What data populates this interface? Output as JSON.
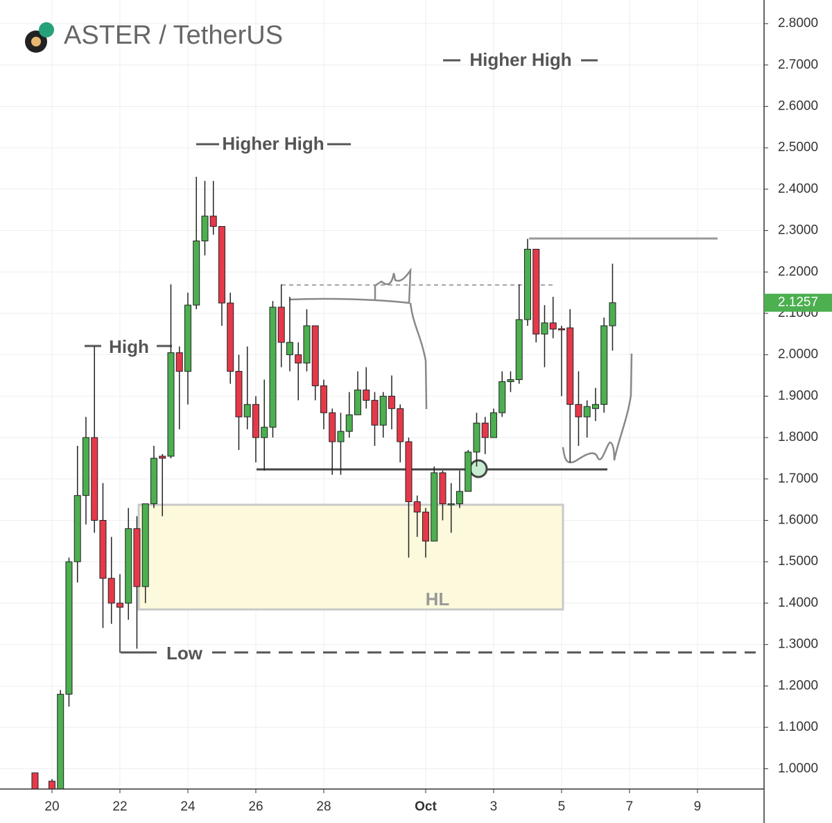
{
  "chart_data": {
    "type": "candlestick",
    "title": "ASTER / TetherUS",
    "annotations": [
      "Higher High",
      "Higher High",
      "High",
      "Low",
      "HL"
    ],
    "last_price_label": "2.1257",
    "up_color": "#4caf50",
    "down_color": "#e5394a",
    "grid": true,
    "xlim": [
      18.47,
      40.96
    ],
    "ylim": [
      0.951,
      2.857
    ],
    "xticks": [
      20,
      22,
      24,
      26,
      28,
      {
        "value": 31,
        "label": "Oct"
      },
      {
        "value": 33,
        "label": "3"
      },
      {
        "value": 35,
        "label": "5"
      },
      {
        "value": 37,
        "label": "7"
      },
      {
        "value": 39,
        "label": "9"
      }
    ],
    "yticks": [
      {
        "value": 1.0,
        "label": "1.0000"
      },
      {
        "value": 1.1,
        "label": "1.1000"
      },
      {
        "value": 1.2,
        "label": "1.2000"
      },
      {
        "value": 1.3,
        "label": "1.3000"
      },
      {
        "value": 1.4,
        "label": "1.4000"
      },
      {
        "value": 1.5,
        "label": "1.5000"
      },
      {
        "value": 1.6,
        "label": "1.6000"
      },
      {
        "value": 1.7,
        "label": "1.7000"
      },
      {
        "value": 1.8,
        "label": "1.8000"
      },
      {
        "value": 1.9,
        "label": "1.9000"
      },
      {
        "value": 2.0,
        "label": "2.0000"
      },
      {
        "value": 2.1,
        "label": "2.1000"
      },
      {
        "value": 2.2,
        "label": "2.2000"
      },
      {
        "value": 2.3,
        "label": "2.3000"
      },
      {
        "value": 2.4,
        "label": "2.4000"
      },
      {
        "value": 2.5,
        "label": "2.5000"
      },
      {
        "value": 2.6,
        "label": "2.6000"
      },
      {
        "value": 2.7,
        "label": "2.7000"
      },
      {
        "value": 2.8,
        "label": "2.8000"
      }
    ],
    "x": [
      19.5,
      20.0,
      20.25,
      20.5,
      20.75,
      21.0,
      21.25,
      21.5,
      21.75,
      22.0,
      22.25,
      22.5,
      22.75,
      23.0,
      23.25,
      23.5,
      23.75,
      24.0,
      24.25,
      24.5,
      24.75,
      25.0,
      25.25,
      25.5,
      25.75,
      26.0,
      26.25,
      26.5,
      26.75,
      27.0,
      27.25,
      27.5,
      27.75,
      28.0,
      28.25,
      28.5,
      28.75,
      29.0,
      29.25,
      29.5,
      29.75,
      30.0,
      30.25,
      30.5,
      30.75,
      31.0,
      31.25,
      31.5,
      31.75,
      32.0,
      32.25,
      32.5,
      32.75,
      33.0,
      33.25,
      33.5,
      33.75,
      34.0,
      34.25,
      34.5,
      34.75,
      35.0,
      35.25,
      35.5,
      35.75,
      36.0,
      36.25,
      36.5
    ],
    "open": [
      0.99,
      0.97,
      0.95,
      1.18,
      1.5,
      1.66,
      1.8,
      1.6,
      1.46,
      1.4,
      1.4,
      1.58,
      1.44,
      1.64,
      1.755,
      1.755,
      2.005,
      1.96,
      2.12,
      2.275,
      2.335,
      2.31,
      2.125,
      1.96,
      1.85,
      1.88,
      1.8,
      1.825,
      2.115,
      2.0,
      2.0,
      1.98,
      2.07,
      1.925,
      1.86,
      1.79,
      1.815,
      1.855,
      1.915,
      1.89,
      1.83,
      1.9,
      1.87,
      1.79,
      1.645,
      1.62,
      1.55,
      1.715,
      1.64,
      1.64,
      1.67,
      1.765,
      1.835,
      1.8,
      1.86,
      1.935,
      1.94,
      2.085,
      2.255,
      2.05,
      2.077,
      2.063,
      2.065,
      1.88,
      1.85,
      1.87,
      1.88,
      2.07
    ],
    "high": [
      0.99,
      0.975,
      1.19,
      1.51,
      1.78,
      1.85,
      2.02,
      1.69,
      1.56,
      1.47,
      1.63,
      1.61,
      1.64,
      1.78,
      1.76,
      2.17,
      2.02,
      2.15,
      2.43,
      2.42,
      2.42,
      2.31,
      2.15,
      2.0,
      2.02,
      1.9,
      1.94,
      2.13,
      2.17,
      2.14,
      2.03,
      2.11,
      2.07,
      1.94,
      1.87,
      1.86,
      1.91,
      1.96,
      1.97,
      1.91,
      1.91,
      1.95,
      1.88,
      1.8,
      1.66,
      1.63,
      1.73,
      1.72,
      1.69,
      1.72,
      1.77,
      1.86,
      1.85,
      1.87,
      1.96,
      1.96,
      2.17,
      2.28,
      2.255,
      2.12,
      2.14,
      2.07,
      2.11,
      1.96,
      1.89,
      1.92,
      2.09,
      2.22
    ],
    "low": [
      0.9,
      0.9,
      0.93,
      1.15,
      1.45,
      1.59,
      1.57,
      1.34,
      1.35,
      1.28,
      1.36,
      1.29,
      1.4,
      1.63,
      1.61,
      1.75,
      1.82,
      1.88,
      2.11,
      2.24,
      2.29,
      2.07,
      1.93,
      1.77,
      1.82,
      1.74,
      1.72,
      1.8,
      1.97,
      1.96,
      1.89,
      1.96,
      1.89,
      1.82,
      1.71,
      1.71,
      1.8,
      1.86,
      1.87,
      1.78,
      1.8,
      1.82,
      1.74,
      1.51,
      1.56,
      1.51,
      1.55,
      1.6,
      1.57,
      1.63,
      1.67,
      1.73,
      1.76,
      1.8,
      1.85,
      1.91,
      1.93,
      2.07,
      2.03,
      1.97,
      2.04,
      1.9,
      1.74,
      1.78,
      1.8,
      1.84,
      1.86,
      2.01
    ],
    "close": [
      0.95,
      0.94,
      1.18,
      1.5,
      1.66,
      1.8,
      1.6,
      1.46,
      1.4,
      1.39,
      1.58,
      1.44,
      1.64,
      1.75,
      1.75,
      2.005,
      1.96,
      2.12,
      2.275,
      2.335,
      2.31,
      2.125,
      1.96,
      1.85,
      1.88,
      1.8,
      1.825,
      2.115,
      2.03,
      2.03,
      1.98,
      2.07,
      1.925,
      1.86,
      1.79,
      1.815,
      1.855,
      1.915,
      1.89,
      1.83,
      1.9,
      1.87,
      1.79,
      1.645,
      1.62,
      1.55,
      1.715,
      1.64,
      1.64,
      1.67,
      1.765,
      1.835,
      1.8,
      1.86,
      1.935,
      1.94,
      2.085,
      2.255,
      2.05,
      2.077,
      2.062,
      2.06,
      1.88,
      1.85,
      1.875,
      1.88,
      2.07,
      2.1257
    ]
  }
}
